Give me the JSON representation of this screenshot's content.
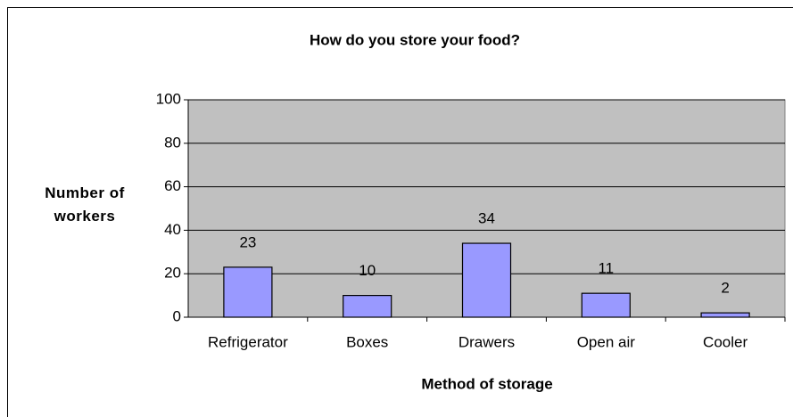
{
  "chart_data": {
    "type": "bar",
    "title": "How do you store your food?",
    "xlabel": "Method of storage",
    "ylabel": "Number of workers",
    "categories": [
      "Refrigerator",
      "Boxes",
      "Drawers",
      "Open air",
      "Cooler"
    ],
    "values": [
      23,
      10,
      34,
      11,
      2
    ],
    "color": "#9999ff",
    "ylim": [
      0,
      100
    ],
    "yticks": [
      0,
      20,
      40,
      60,
      80,
      100
    ],
    "grid": true
  }
}
